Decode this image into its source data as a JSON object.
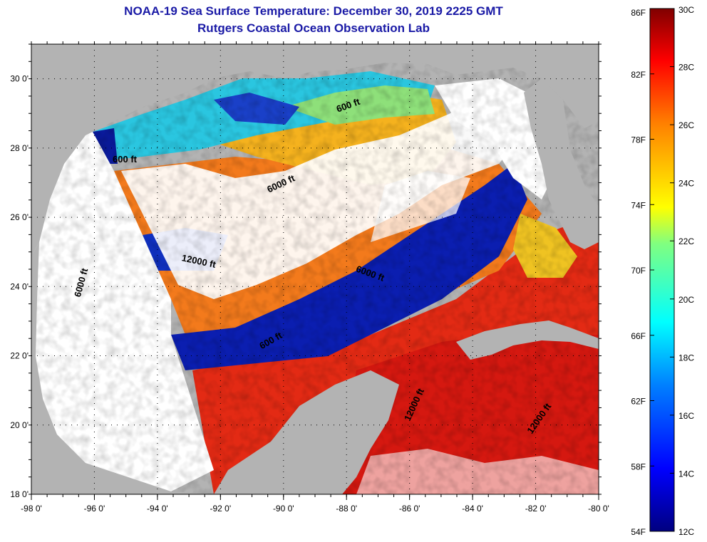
{
  "header": {
    "title": "NOAA-19 Sea Surface Temperature:  December 30, 2019 2225 GMT",
    "subtitle": "Rutgers Coastal Ocean Observation Lab"
  },
  "map": {
    "lon_ticks": [
      "-98 0'",
      "-96 0'",
      "-94 0'",
      "-92 0'",
      "-90 0'",
      "-88 0'",
      "-86 0'",
      "-84 0'",
      "-82 0'",
      "-80 0'"
    ],
    "lat_ticks": [
      "30 0'",
      "28 0'",
      "26 0'",
      "24 0'",
      "22 0'",
      "20 0'",
      "18 0'"
    ],
    "lon_range": [
      -98,
      -80
    ],
    "lat_range": [
      18,
      31
    ],
    "contour_labels": [
      "600 ft",
      "600 ft",
      "6000 ft",
      "12000 ft",
      "6000 ft",
      "6000 ft",
      "600 ft",
      "12000 ft",
      "12000 ft"
    ],
    "land_color": "#b3b3b3",
    "cloud_color": "#ffffff"
  },
  "colorbar": {
    "fahrenheit_labels": [
      "86F",
      "82F",
      "78F",
      "74F",
      "70F",
      "66F",
      "62F",
      "58F",
      "54F"
    ],
    "celsius_labels": [
      "30C",
      "28C",
      "26C",
      "24C",
      "22C",
      "20C",
      "18C",
      "16C",
      "14C",
      "12C"
    ],
    "range_c": [
      12,
      30
    ],
    "range_f": [
      54,
      86
    ]
  }
}
